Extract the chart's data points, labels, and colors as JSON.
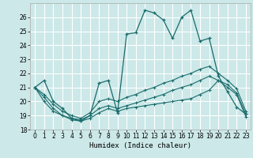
{
  "xlabel": "Humidex (Indice chaleur)",
  "xlim": [
    -0.5,
    23.5
  ],
  "ylim": [
    18.0,
    27.0
  ],
  "yticks": [
    18,
    19,
    20,
    21,
    22,
    23,
    24,
    25,
    26
  ],
  "xticks": [
    0,
    1,
    2,
    3,
    4,
    5,
    6,
    7,
    8,
    9,
    10,
    11,
    12,
    13,
    14,
    15,
    16,
    17,
    18,
    19,
    20,
    21,
    22,
    23
  ],
  "bg_color": "#cce8e8",
  "grid_color": "#ffffff",
  "line_color": "#1a6b6b",
  "series1_y": [
    21.0,
    21.5,
    20.0,
    19.5,
    18.8,
    18.6,
    19.0,
    21.3,
    21.5,
    19.2,
    24.8,
    24.9,
    26.5,
    26.3,
    25.8,
    24.5,
    26.0,
    26.5,
    24.3,
    24.5,
    21.8,
    20.7,
    19.6,
    19.1
  ],
  "series2_y": [
    21.0,
    20.5,
    19.8,
    19.3,
    19.0,
    18.8,
    19.2,
    20.0,
    20.2,
    20.0,
    20.3,
    20.5,
    20.8,
    21.0,
    21.3,
    21.5,
    21.8,
    22.0,
    22.3,
    22.5,
    22.0,
    21.5,
    20.9,
    19.3
  ],
  "series3_y": [
    21.0,
    20.3,
    19.5,
    19.0,
    18.8,
    18.7,
    19.0,
    19.5,
    19.7,
    19.5,
    19.7,
    19.9,
    20.1,
    20.3,
    20.5,
    20.8,
    21.0,
    21.2,
    21.5,
    21.8,
    21.5,
    21.2,
    20.6,
    19.1
  ],
  "series4_y": [
    21.0,
    20.0,
    19.3,
    19.0,
    18.7,
    18.6,
    18.8,
    19.2,
    19.5,
    19.3,
    19.5,
    19.6,
    19.7,
    19.8,
    19.9,
    20.0,
    20.1,
    20.2,
    20.5,
    20.8,
    21.5,
    21.0,
    20.5,
    18.9
  ],
  "tick_fontsize": 5.5,
  "xlabel_fontsize": 6.5
}
